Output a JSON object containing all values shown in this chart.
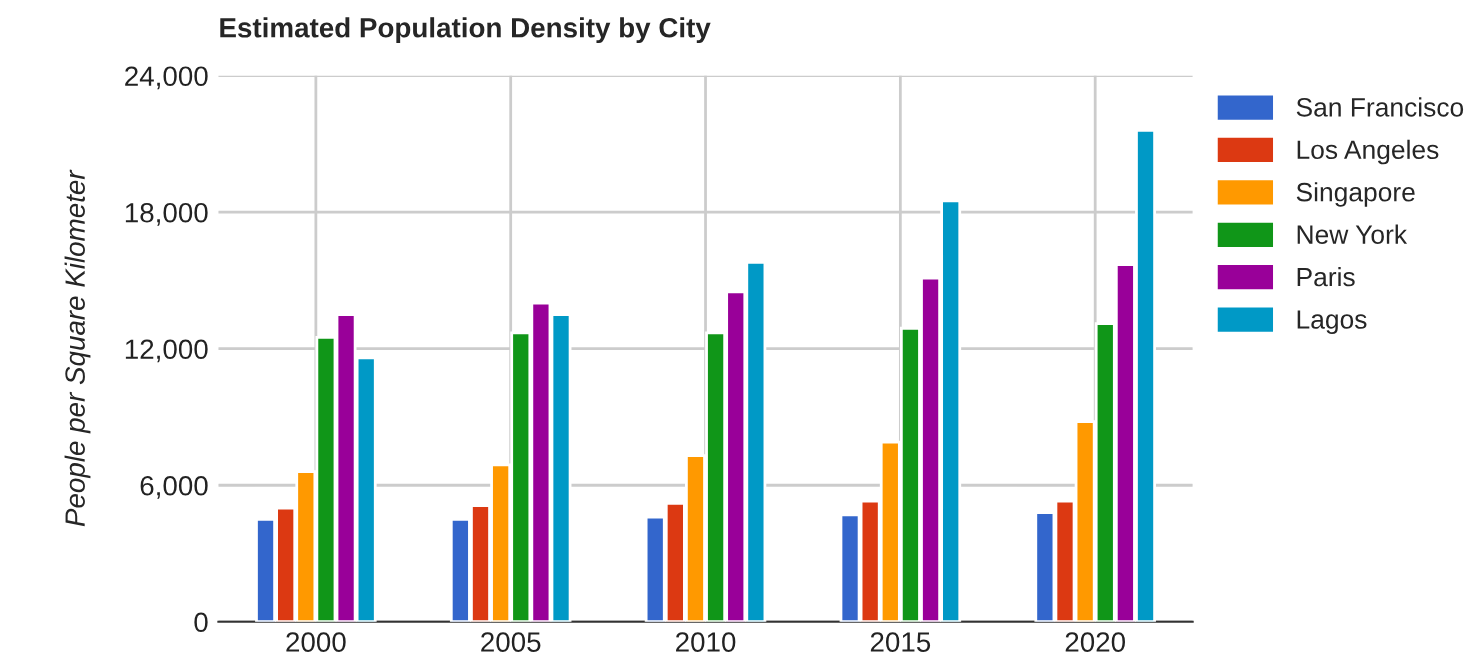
{
  "chart_data": {
    "type": "bar",
    "title": "Estimated Population Density by City",
    "ylabel": "People per Square Kilometer",
    "categories": [
      "2000",
      "2005",
      "2010",
      "2015",
      "2020"
    ],
    "series": [
      {
        "name": "San Francisco",
        "color": "#3366cc",
        "values": [
          4500,
          4500,
          4600,
          4700,
          4800
        ]
      },
      {
        "name": "Los Angeles",
        "color": "#dc3912",
        "values": [
          5000,
          5100,
          5200,
          5300,
          5300
        ]
      },
      {
        "name": "Singapore",
        "color": "#ff9900",
        "values": [
          6600,
          6900,
          7300,
          7900,
          8800
        ]
      },
      {
        "name": "New York",
        "color": "#109618",
        "values": [
          12500,
          12700,
          12700,
          12900,
          13100
        ]
      },
      {
        "name": "Paris",
        "color": "#990099",
        "values": [
          13500,
          14000,
          14500,
          15100,
          15700
        ]
      },
      {
        "name": "Lagos",
        "color": "#0099c6",
        "values": [
          11600,
          13500,
          15800,
          18500,
          21600
        ]
      }
    ],
    "ylim": [
      0,
      24000
    ],
    "yticks": [
      0,
      {
        "value": 6000,
        "label": "6,000"
      },
      {
        "value": 12000,
        "label": "12,000"
      },
      {
        "value": 18000,
        "label": "18,000"
      },
      {
        "value": 24000,
        "label": "24,000"
      }
    ],
    "grid": true,
    "legend": "top right"
  }
}
